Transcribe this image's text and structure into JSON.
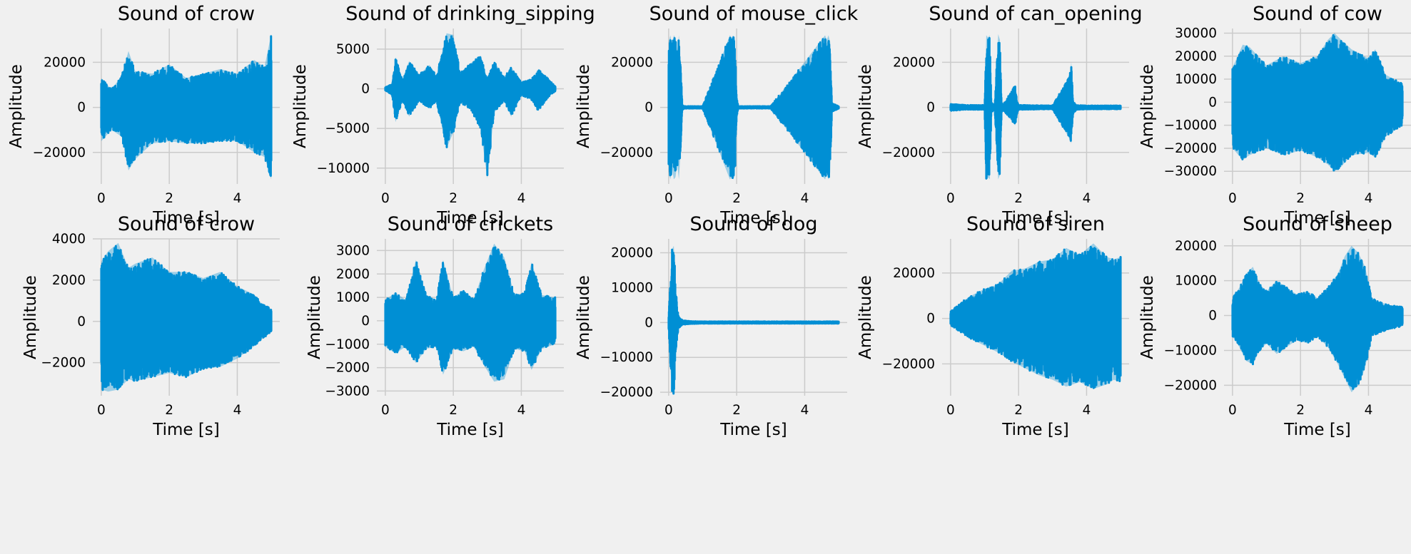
{
  "chart_data": [
    {
      "type": "line",
      "title": "Sound of crow",
      "xlabel": "Time [s]",
      "ylabel": "Amplitude",
      "xlim": [
        -0.25,
        5.25
      ],
      "ylim": [
        -34000,
        35000
      ],
      "xticks": [
        0,
        2,
        4
      ],
      "yticks": [
        -20000,
        0,
        20000
      ],
      "xtick_labels": [
        "0",
        "2",
        "4"
      ],
      "ytick_labels": [
        "−20000",
        "0",
        "20000"
      ],
      "grid": true,
      "color": "#008fd5",
      "envelope": {
        "x": [
          0,
          0.3,
          0.6,
          0.8,
          1.0,
          1.5,
          2.0,
          2.5,
          3.0,
          3.5,
          4.0,
          4.5,
          4.8,
          5.0
        ],
        "upper": [
          13000,
          8000,
          14000,
          25000,
          16000,
          15000,
          19000,
          13000,
          15000,
          17000,
          15000,
          21000,
          18000,
          32500
        ],
        "lower": [
          -15000,
          -10000,
          -13000,
          -28000,
          -23000,
          -16000,
          -15000,
          -16000,
          -16000,
          -15000,
          -15000,
          -20000,
          -22000,
          -32000
        ]
      }
    },
    {
      "type": "line",
      "title": "Sound of drinking_sipping",
      "xlabel": "Time [s]",
      "ylabel": "Amplitude",
      "xlim": [
        -0.25,
        5.25
      ],
      "ylim": [
        -12000,
        7600
      ],
      "xticks": [
        0,
        2,
        4
      ],
      "yticks": [
        -10000,
        -5000,
        0,
        5000
      ],
      "xtick_labels": [
        "0",
        "2",
        "4"
      ],
      "ytick_labels": [
        "−10000",
        "−5000",
        "0",
        "5000"
      ],
      "grid": true,
      "color": "#008fd5",
      "envelope": {
        "x": [
          0,
          0.2,
          0.3,
          0.5,
          0.7,
          1.0,
          1.3,
          1.5,
          1.8,
          2.0,
          2.2,
          2.5,
          2.8,
          3.0,
          3.2,
          3.5,
          3.7,
          4.0,
          4.3,
          4.5,
          4.8,
          5.0
        ],
        "upper": [
          200,
          600,
          4000,
          1200,
          3500,
          1800,
          3000,
          1600,
          7000,
          6800,
          2000,
          3200,
          4200,
          1200,
          3500,
          1400,
          2800,
          800,
          1200,
          2500,
          1200,
          300
        ],
        "lower": [
          -200,
          -800,
          -4200,
          -1500,
          -3500,
          -1500,
          -2500,
          -1500,
          -7500,
          -5500,
          -1800,
          -2500,
          -5000,
          -11300,
          -3000,
          -1500,
          -3500,
          -800,
          -1400,
          -2800,
          -1000,
          -300
        ]
      }
    },
    {
      "type": "line",
      "title": "Sound of mouse_click",
      "xlabel": "Time [s]",
      "ylabel": "Amplitude",
      "xlim": [
        -0.25,
        5.25
      ],
      "ylim": [
        -34000,
        35000
      ],
      "xticks": [
        0,
        2,
        4
      ],
      "yticks": [
        -20000,
        0,
        20000
      ],
      "xtick_labels": [
        "0",
        "2",
        "4"
      ],
      "ytick_labels": [
        "−20000",
        "0",
        "20000"
      ],
      "grid": true,
      "color": "#008fd5",
      "envelope": {
        "x": [
          0,
          0.05,
          0.1,
          0.15,
          0.2,
          0.25,
          0.3,
          0.35,
          0.4,
          0.45,
          1.0,
          1.8,
          1.85,
          1.9,
          1.95,
          2.0,
          2.05,
          3.0,
          4.55,
          4.6,
          4.65,
          4.7,
          4.75,
          4.8,
          5.0
        ],
        "upper": [
          29000,
          32000,
          27000,
          32000,
          31000,
          25000,
          32000,
          20000,
          1200,
          500,
          500,
          32000,
          31000,
          32000,
          30000,
          4000,
          500,
          500,
          31000,
          32000,
          30000,
          32000,
          29000,
          2000,
          500
        ],
        "lower": [
          -29000,
          -32000,
          -27000,
          -32000,
          -31000,
          -25000,
          -32000,
          -20000,
          -1200,
          -500,
          -500,
          -32000,
          -31000,
          -32000,
          -30000,
          -4000,
          -500,
          -500,
          -31000,
          -32000,
          -30000,
          -32000,
          -29000,
          -2000,
          -500
        ]
      }
    },
    {
      "type": "line",
      "title": "Sound of can_opening",
      "xlabel": "Time [s]",
      "ylabel": "Amplitude",
      "xlim": [
        -0.25,
        5.25
      ],
      "ylim": [
        -34000,
        35000
      ],
      "xticks": [
        0,
        2,
        4
      ],
      "yticks": [
        -20000,
        0,
        20000
      ],
      "xtick_labels": [
        "0",
        "2",
        "4"
      ],
      "ytick_labels": [
        "−20000",
        "0",
        "20000"
      ],
      "grid": true,
      "color": "#008fd5",
      "envelope": {
        "x": [
          0,
          0.5,
          1.0,
          1.05,
          1.1,
          1.15,
          1.2,
          1.3,
          1.4,
          1.45,
          1.5,
          1.55,
          1.9,
          1.95,
          2.0,
          3.0,
          3.5,
          3.55,
          3.6,
          3.7,
          4.0,
          5.0
        ],
        "upper": [
          1500,
          1000,
          1000,
          32000,
          31000,
          32000,
          2000,
          1500,
          32500,
          30000,
          2000,
          1200,
          10000,
          3000,
          1000,
          800,
          14000,
          20000,
          3000,
          1000,
          800,
          800
        ],
        "lower": [
          -1500,
          -1000,
          -1000,
          -32000,
          -31000,
          -32000,
          -2000,
          -1500,
          -32000,
          -30000,
          -2000,
          -1200,
          -8000,
          -3000,
          -1000,
          -800,
          -14000,
          -16000,
          -3000,
          -1000,
          -800,
          -800
        ]
      }
    },
    {
      "type": "line",
      "title": "Sound of cow",
      "xlabel": "Time [s]",
      "ylabel": "Amplitude",
      "xlim": [
        -0.25,
        5.25
      ],
      "ylim": [
        -35500,
        32000
      ],
      "xticks": [
        0,
        2,
        4
      ],
      "yticks": [
        -30000,
        -20000,
        -10000,
        0,
        10000,
        20000,
        30000
      ],
      "xtick_labels": [
        "0",
        "2",
        "4"
      ],
      "ytick_labels": [
        "−30000",
        "−20000",
        "−10000",
        "0",
        "10000",
        "20000",
        "30000"
      ],
      "grid": true,
      "color": "#008fd5",
      "envelope": {
        "x": [
          0,
          0.3,
          0.5,
          1.0,
          1.5,
          2.0,
          2.5,
          2.8,
          3.0,
          3.2,
          3.5,
          4.0,
          4.2,
          4.5,
          5.0
        ],
        "upper": [
          15000,
          25000,
          24000,
          16000,
          20000,
          17000,
          20000,
          27000,
          30000,
          27000,
          23000,
          19000,
          23000,
          12000,
          8000
        ],
        "lower": [
          -20000,
          -25000,
          -23000,
          -20000,
          -23000,
          -21000,
          -24000,
          -27000,
          -30000,
          -28000,
          -23000,
          -22000,
          -24000,
          -15000,
          -10000
        ]
      }
    },
    {
      "type": "line",
      "title": "Sound of crow",
      "xlabel": "Time [s]",
      "ylabel": "Amplitude",
      "xlim": [
        -0.25,
        5.25
      ],
      "ylim": [
        -3600,
        4000
      ],
      "xticks": [
        0,
        2,
        4
      ],
      "yticks": [
        -2000,
        0,
        2000,
        4000
      ],
      "xtick_labels": [
        "0",
        "2",
        "4"
      ],
      "ytick_labels": [
        "−2000",
        "0",
        "2000",
        "4000"
      ],
      "grid": true,
      "color": "#008fd5",
      "envelope": {
        "x": [
          0,
          0.2,
          0.5,
          0.8,
          1.0,
          1.5,
          2.0,
          2.5,
          3.0,
          3.5,
          4.0,
          4.5,
          4.7,
          5.0
        ],
        "upper": [
          2900,
          3400,
          3800,
          2600,
          2800,
          3100,
          2400,
          2400,
          2100,
          2400,
          1700,
          1300,
          900,
          600
        ],
        "lower": [
          -3300,
          -3400,
          -3300,
          -2800,
          -2900,
          -2700,
          -2500,
          -2700,
          -2300,
          -2200,
          -1800,
          -1200,
          -900,
          -500
        ]
      }
    },
    {
      "type": "line",
      "title": "Sound of crickets",
      "xlabel": "Time [s]",
      "ylabel": "Amplitude",
      "xlim": [
        -0.25,
        5.25
      ],
      "ylim": [
        -3200,
        3500
      ],
      "xticks": [
        0,
        2,
        4
      ],
      "yticks": [
        -3000,
        -2000,
        -1000,
        0,
        1000,
        2000,
        3000
      ],
      "xtick_labels": [
        "0",
        "2",
        "4"
      ],
      "ytick_labels": [
        "−3000",
        "−2000",
        "−1000",
        "0",
        "1000",
        "2000",
        "3000"
      ],
      "grid": true,
      "color": "#008fd5",
      "envelope": {
        "x": [
          0,
          0.3,
          0.6,
          0.9,
          1.2,
          1.5,
          1.7,
          2.0,
          2.3,
          2.6,
          2.9,
          3.2,
          3.5,
          3.8,
          4.1,
          4.3,
          4.6,
          5.0
        ],
        "upper": [
          900,
          1200,
          900,
          2600,
          1100,
          900,
          2600,
          1000,
          1300,
          900,
          2200,
          3300,
          2700,
          1100,
          1200,
          2500,
          1100,
          1000
        ],
        "lower": [
          -1100,
          -1400,
          -1100,
          -1800,
          -1200,
          -1100,
          -2300,
          -1200,
          -1300,
          -1100,
          -1900,
          -2600,
          -2500,
          -1200,
          -1300,
          -2100,
          -1200,
          -1000
        ]
      }
    },
    {
      "type": "line",
      "title": "Sound of dog",
      "xlabel": "Time [s]",
      "ylabel": "Amplitude",
      "xlim": [
        -0.25,
        5.25
      ],
      "ylim": [
        -21000,
        24000
      ],
      "xticks": [
        0,
        2,
        4
      ],
      "yticks": [
        -20000,
        -10000,
        0,
        10000,
        20000
      ],
      "xtick_labels": [
        "0",
        "2",
        "4"
      ],
      "ytick_labels": [
        "−20000",
        "−10000",
        "0",
        "10000",
        "20000"
      ],
      "grid": true,
      "color": "#008fd5",
      "envelope": {
        "x": [
          0,
          0.05,
          0.1,
          0.15,
          0.2,
          0.25,
          0.3,
          0.4,
          0.6,
          1.0,
          5.0
        ],
        "upper": [
          2000,
          12000,
          21000,
          22000,
          12000,
          4000,
          1500,
          700,
          400,
          300,
          300
        ],
        "lower": [
          -2000,
          -13000,
          -20000,
          -20500,
          -11000,
          -4000,
          -1500,
          -700,
          -400,
          -300,
          -300
        ]
      }
    },
    {
      "type": "line",
      "title": "Sound of siren",
      "xlabel": "Time [s]",
      "ylabel": "Amplitude",
      "xlim": [
        -0.25,
        5.25
      ],
      "ylim": [
        -34000,
        35000
      ],
      "xticks": [
        0,
        2,
        4
      ],
      "yticks": [
        -20000,
        0,
        20000
      ],
      "xtick_labels": [
        "0",
        "2",
        "4"
      ],
      "ytick_labels": [
        "−20000",
        "0",
        "20000"
      ],
      "grid": true,
      "color": "#008fd5",
      "envelope": {
        "x": [
          0,
          0.3,
          0.6,
          1.0,
          1.4,
          1.8,
          2.2,
          2.6,
          3.0,
          3.4,
          3.8,
          4.2,
          4.6,
          4.8,
          5.0
        ],
        "upper": [
          3000,
          7000,
          10000,
          13000,
          15000,
          21000,
          22000,
          25000,
          26000,
          31000,
          28000,
          33000,
          27000,
          26000,
          27000
        ],
        "lower": [
          -3000,
          -6000,
          -9000,
          -12000,
          -15000,
          -19000,
          -22000,
          -25000,
          -27000,
          -30000,
          -28000,
          -31000,
          -29000,
          -27000,
          -28000
        ]
      }
    },
    {
      "type": "line",
      "title": "Sound of sheep",
      "xlabel": "Time [s]",
      "ylabel": "Amplitude",
      "xlim": [
        -0.25,
        5.25
      ],
      "ylim": [
        -23000,
        22000
      ],
      "xticks": [
        0,
        2,
        4
      ],
      "yticks": [
        -20000,
        -10000,
        0,
        10000,
        20000
      ],
      "xtick_labels": [
        "0",
        "2",
        "4"
      ],
      "ytick_labels": [
        "−20000",
        "−10000",
        "0",
        "10000",
        "20000"
      ],
      "grid": true,
      "color": "#008fd5",
      "envelope": {
        "x": [
          0,
          0.2,
          0.4,
          0.6,
          0.8,
          1.0,
          1.3,
          1.6,
          1.9,
          2.2,
          2.5,
          2.8,
          3.1,
          3.3,
          3.5,
          3.7,
          3.9,
          4.1,
          4.3,
          4.6,
          5.0
        ],
        "upper": [
          5000,
          8000,
          12000,
          14000,
          9000,
          7000,
          10000,
          8000,
          6000,
          7000,
          5000,
          8000,
          12000,
          17000,
          20000,
          18000,
          14000,
          5000,
          4000,
          3000,
          2500
        ],
        "lower": [
          -6000,
          -9000,
          -13000,
          -14000,
          -10000,
          -8000,
          -11000,
          -9000,
          -7000,
          -8000,
          -6000,
          -9000,
          -14000,
          -18000,
          -22000,
          -20000,
          -15000,
          -6000,
          -5000,
          -4000,
          -3000
        ]
      }
    }
  ]
}
